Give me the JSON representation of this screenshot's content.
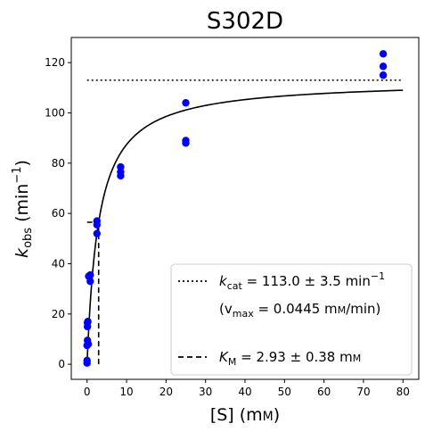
{
  "chart_data": {
    "type": "scatter",
    "title": "S302D",
    "xlabel": {
      "base": "[S] (m",
      "smallcaps": "M",
      "tail": ")"
    },
    "ylabel": {
      "k": "k",
      "sub": "obs",
      "mid": " (min",
      "sup": "−1",
      "tail": ")"
    },
    "xlim": [
      -4,
      84
    ],
    "ylim": [
      -6,
      130
    ],
    "xticks": [
      0,
      10,
      20,
      30,
      40,
      50,
      60,
      70,
      80
    ],
    "yticks": [
      0,
      20,
      40,
      60,
      80,
      100,
      120
    ],
    "grid": false,
    "legend_position": "lower-right",
    "series": [
      {
        "kind": "points",
        "color": "#0000ff",
        "x": [
          0.0,
          0.0,
          0.0,
          0.1,
          0.1,
          0.1,
          0.2,
          0.3,
          0.4,
          0.8,
          0.8,
          2.5,
          2.5,
          2.5,
          8.5,
          8.5,
          8.5,
          25,
          25,
          25,
          75,
          75,
          75
        ],
        "y": [
          0.5,
          1.5,
          7.5,
          9.5,
          15.0,
          16.5,
          17.0,
          8.0,
          35.0,
          33.0,
          35.5,
          52.0,
          55.5,
          57.0,
          75.0,
          76.5,
          78.5,
          88.0,
          89.0,
          104.0,
          115.0,
          118.5,
          123.5
        ]
      },
      {
        "kind": "fit",
        "color": "#000000",
        "model": "michaelis-menten",
        "vmax": 113.0,
        "km": 2.93,
        "x_range": [
          0,
          80
        ]
      },
      {
        "kind": "kcat-line",
        "style": "dotted",
        "color": "#000000",
        "y": 113.0,
        "x_range": [
          0,
          80
        ]
      },
      {
        "kind": "km-line",
        "style": "dashed",
        "color": "#000000",
        "x": 2.93,
        "y_half": 56.5
      }
    ],
    "legend": {
      "entries": [
        {
          "style": "dotted",
          "k": "k",
          "sub": "cat",
          "text": " = 113.0 ± 3.5 min",
          "sup": "−1"
        },
        {
          "style": "none",
          "text": "(v",
          "sub": "max",
          "text2": " = 0.0445 m",
          "smallcaps": "M",
          "tail": "/min)"
        },
        {
          "style": "dashed",
          "k": "K",
          "sub": "M",
          "text": " = 2.93 ± 0.38 m",
          "smallcaps": "M"
        }
      ]
    }
  }
}
